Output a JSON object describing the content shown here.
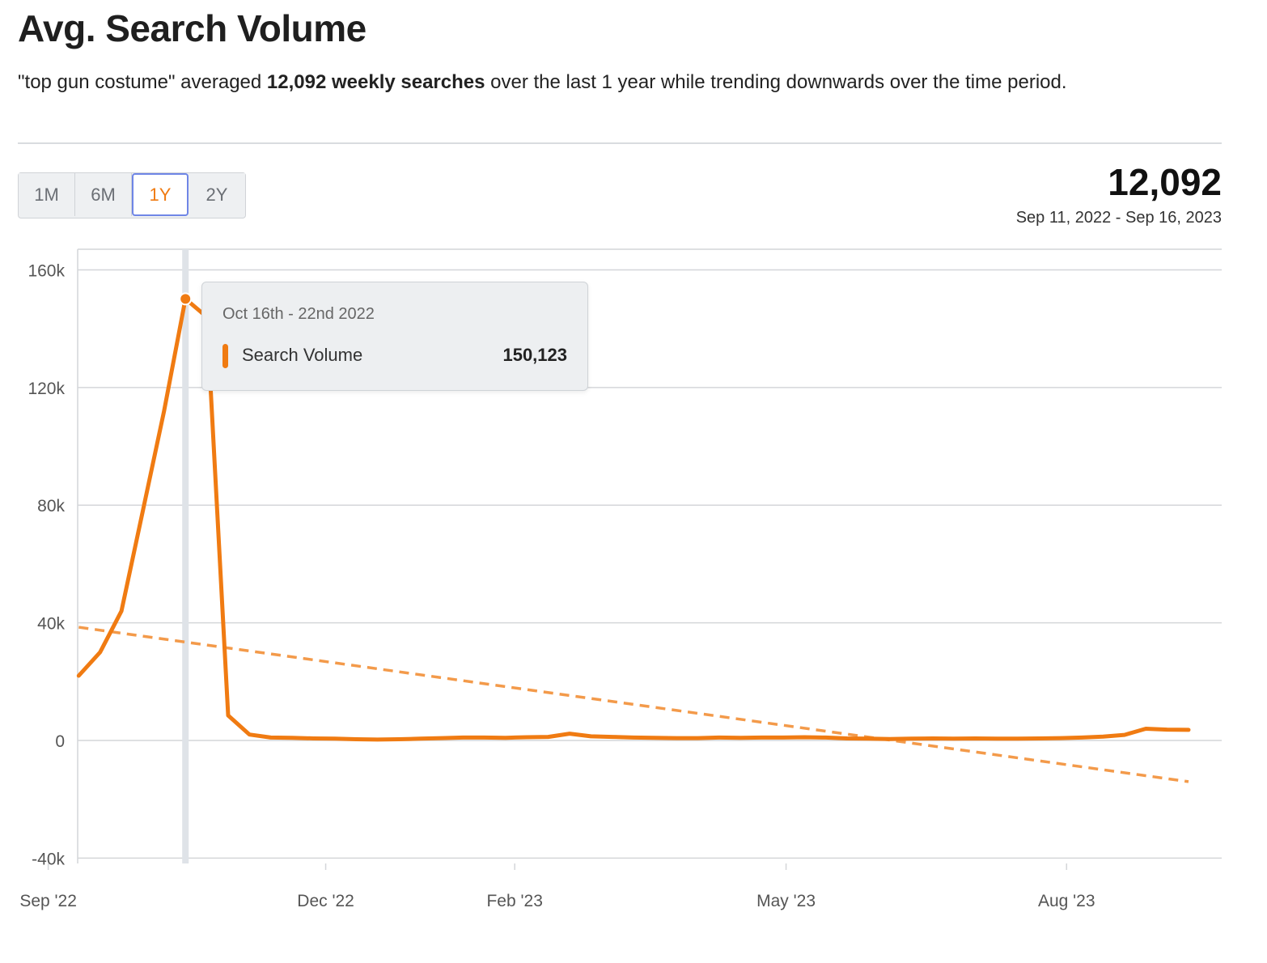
{
  "header": {
    "title": "Avg. Search Volume",
    "summary_prefix": "\"top gun costume\" averaged ",
    "summary_bold": "12,092 weekly searches",
    "summary_suffix": " over the last 1 year while trending downwards over the time period."
  },
  "range_buttons": [
    {
      "label": "1M",
      "active": false
    },
    {
      "label": "6M",
      "active": false
    },
    {
      "label": "1Y",
      "active": true
    },
    {
      "label": "2Y",
      "active": false
    }
  ],
  "stats": {
    "value": "12,092",
    "date_range": "Sep 11, 2022 - Sep 16, 2023"
  },
  "tooltip": {
    "date": "Oct 16th - 22nd 2022",
    "series_label": "Search Volume",
    "value": "150,123"
  },
  "colors": {
    "series": "#f07b12",
    "trend": "#f39a4a",
    "grid": "#d4d6d9",
    "hover_line": "#dfe3e8",
    "active_button_border": "#6f86e6"
  },
  "chart_data": {
    "type": "line",
    "x_axis": "time (weekly)",
    "x_start": "2022-09-11",
    "x_end": "2023-09-16",
    "xtick_labels": [
      "Sep '22",
      "Dec '22",
      "Feb '23",
      "May '23",
      "Aug '23"
    ],
    "xtick_dates": [
      "2022-09-01",
      "2022-12-01",
      "2023-02-01",
      "2023-05-01",
      "2023-08-01"
    ],
    "ylim": [
      -40000,
      160000
    ],
    "yticks": [
      -40000,
      0,
      40000,
      80000,
      120000,
      160000
    ],
    "ytick_labels": [
      "-40k",
      "0",
      "40k",
      "80k",
      "120k",
      "160k"
    ],
    "grid": true,
    "series": [
      {
        "name": "Search Volume",
        "dates": [
          "2022-09-11",
          "2022-09-18",
          "2022-09-25",
          "2022-10-02",
          "2022-10-09",
          "2022-10-16",
          "2022-10-23",
          "2022-10-30",
          "2022-11-06",
          "2022-11-13",
          "2022-11-20",
          "2022-11-27",
          "2022-12-04",
          "2022-12-11",
          "2022-12-18",
          "2022-12-25",
          "2023-01-01",
          "2023-01-08",
          "2023-01-15",
          "2023-01-22",
          "2023-01-29",
          "2023-02-05",
          "2023-02-12",
          "2023-02-19",
          "2023-02-26",
          "2023-03-05",
          "2023-03-12",
          "2023-03-19",
          "2023-03-26",
          "2023-04-02",
          "2023-04-09",
          "2023-04-16",
          "2023-04-23",
          "2023-04-30",
          "2023-05-07",
          "2023-05-14",
          "2023-05-21",
          "2023-05-28",
          "2023-06-04",
          "2023-06-11",
          "2023-06-18",
          "2023-06-25",
          "2023-07-02",
          "2023-07-09",
          "2023-07-16",
          "2023-07-23",
          "2023-07-30",
          "2023-08-06",
          "2023-08-13",
          "2023-08-20",
          "2023-08-27",
          "2023-09-03",
          "2023-09-10"
        ],
        "values": [
          22000,
          30000,
          44000,
          78000,
          112000,
          150123,
          144000,
          8500,
          2000,
          1000,
          900,
          700,
          600,
          400,
          300,
          400,
          600,
          800,
          1000,
          1000,
          900,
          1100,
          1200,
          2300,
          1400,
          1200,
          1000,
          900,
          800,
          800,
          1000,
          900,
          1000,
          1000,
          1100,
          1000,
          700,
          600,
          500,
          600,
          700,
          600,
          700,
          600,
          600,
          700,
          800,
          1000,
          1300,
          1900,
          4000,
          3700,
          3600
        ]
      },
      {
        "name": "Trend",
        "style": "dashed",
        "dates": [
          "2022-09-11",
          "2023-09-10"
        ],
        "values": [
          38500,
          -14000
        ]
      }
    ],
    "hover": {
      "date": "2022-10-16",
      "value": 150123
    }
  }
}
